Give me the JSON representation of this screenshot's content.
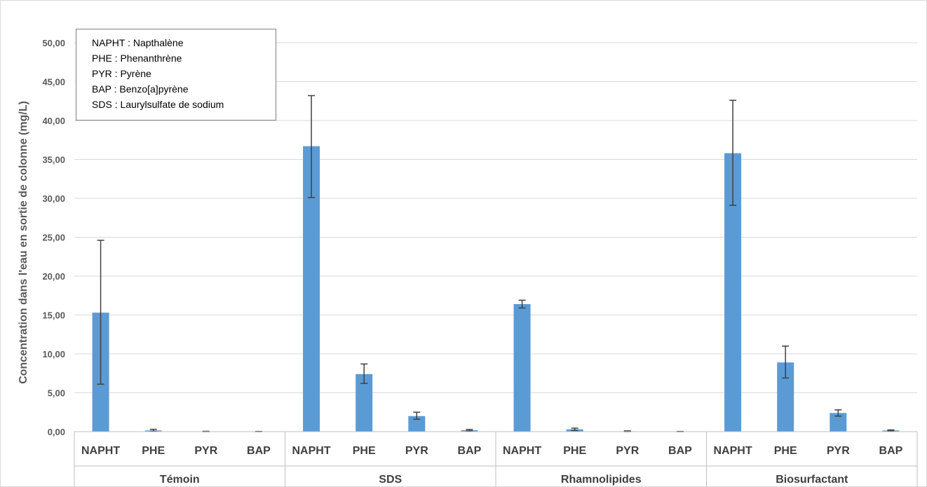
{
  "chart_data": {
    "type": "bar",
    "ylabel": "Concentration dans l'eau en sortie de colonne (mg/L)",
    "xlabel": "",
    "ylim": [
      0,
      50
    ],
    "yticks": [
      "0,00",
      "5,00",
      "10,00",
      "15,00",
      "20,00",
      "25,00",
      "30,00",
      "35,00",
      "40,00",
      "45,00",
      "50,00"
    ],
    "grid": true,
    "bar_color": "#5b9bd5",
    "errorbar_color": "#404040",
    "groups": [
      {
        "name": "Témoin",
        "categories": [
          "NAPHT",
          "PHE",
          "PYR",
          "BAP"
        ],
        "values": [
          15.3,
          0.15,
          0.03,
          0.02
        ],
        "err_low": [
          6.1,
          0.05,
          0.0,
          0.0
        ],
        "err_high": [
          24.6,
          0.3,
          0.05,
          0.03
        ]
      },
      {
        "name": "SDS",
        "categories": [
          "NAPHT",
          "PHE",
          "PYR",
          "BAP"
        ],
        "values": [
          36.7,
          7.4,
          2.0,
          0.18
        ],
        "err_low": [
          30.1,
          6.2,
          1.6,
          0.1
        ],
        "err_high": [
          43.2,
          8.7,
          2.5,
          0.28
        ]
      },
      {
        "name": "Rhamnolipides",
        "categories": [
          "NAPHT",
          "PHE",
          "PYR",
          "BAP"
        ],
        "values": [
          16.4,
          0.3,
          0.05,
          0.02
        ],
        "err_low": [
          15.9,
          0.15,
          0.0,
          0.0
        ],
        "err_high": [
          16.9,
          0.45,
          0.1,
          0.03
        ]
      },
      {
        "name": "Biosurfactant",
        "categories": [
          "NAPHT",
          "PHE",
          "PYR",
          "BAP"
        ],
        "values": [
          35.8,
          8.9,
          2.4,
          0.15
        ],
        "err_low": [
          29.1,
          6.9,
          2.0,
          0.1
        ],
        "err_high": [
          42.6,
          11.0,
          2.8,
          0.22
        ]
      }
    ]
  },
  "legend": {
    "lines": [
      "NAPHT : Napthalène",
      "PHE : Phenanthrène",
      "PYR : Pyrène",
      "BAP : Benzo[a]pyrène",
      "SDS : Laurylsulfate de sodium"
    ]
  }
}
